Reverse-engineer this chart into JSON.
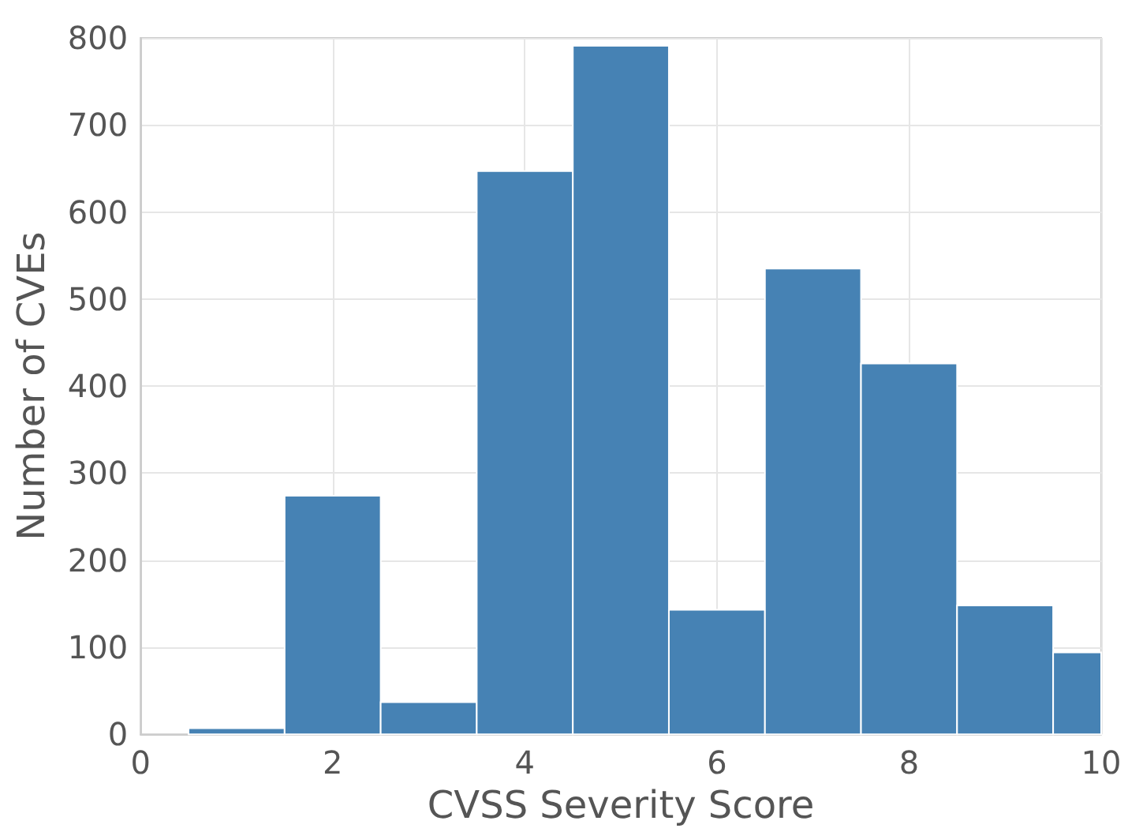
{
  "chart_data": {
    "type": "histogram",
    "xlabel": "CVSS Severity Score",
    "ylabel": "Number of CVEs",
    "bins": [
      0.5,
      1.5,
      2.5,
      3.5,
      4.5,
      5.5,
      6.5,
      7.5,
      8.5,
      9.5,
      10
    ],
    "values": [
      7,
      274,
      37,
      647,
      791,
      143,
      535,
      426,
      148,
      94
    ],
    "color": "#4682b4",
    "xlim": [
      0,
      10
    ],
    "xticks": [
      0,
      2,
      4,
      6,
      8,
      10
    ],
    "ylim": [
      0,
      800
    ],
    "yticks": [
      0,
      100,
      200,
      300,
      400,
      500,
      600,
      700,
      800
    ],
    "grid": true
  }
}
